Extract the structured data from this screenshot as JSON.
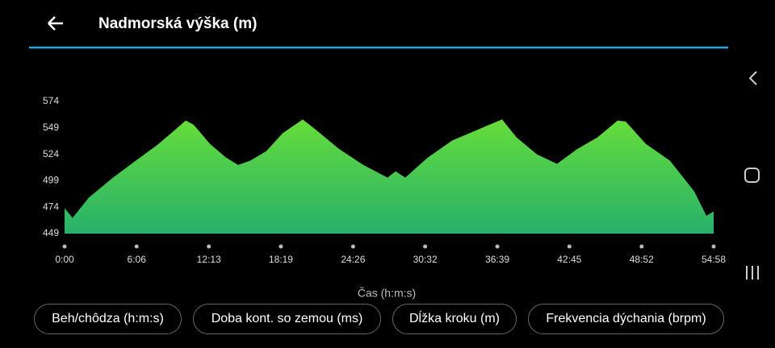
{
  "header": {
    "title": "Nadmorská výška (m)"
  },
  "chart_data": {
    "type": "area",
    "x_label": "Čas (h:m:s)",
    "x": [
      0,
      41,
      123,
      246,
      369,
      472,
      554,
      615,
      656,
      738,
      820,
      882,
      943,
      1025,
      1108,
      1210,
      1272,
      1395,
      1518,
      1641,
      1682,
      1731,
      1846,
      1969,
      2133,
      2223,
      2297,
      2400,
      2502,
      2605,
      2707,
      2810,
      2851,
      2953,
      3076,
      3199,
      3261,
      3298
    ],
    "values": [
      473,
      464,
      483,
      502,
      519,
      533,
      546,
      556,
      552,
      534,
      521,
      514,
      518,
      527,
      544,
      557,
      548,
      529,
      514,
      502,
      508,
      502,
      521,
      537,
      550,
      557,
      540,
      524,
      515,
      529,
      540,
      556,
      555,
      534,
      518,
      489,
      466,
      470
    ],
    "color": "#66dd3a",
    "xlim": [
      0,
      3298
    ],
    "xticks": [
      {
        "value": 0,
        "label": "0:00"
      },
      {
        "value": 366,
        "label": "6:06"
      },
      {
        "value": 733,
        "label": "12:13"
      },
      {
        "value": 1099,
        "label": "18:19"
      },
      {
        "value": 1466,
        "label": "24:26"
      },
      {
        "value": 1832,
        "label": "30:32"
      },
      {
        "value": 2199,
        "label": "36:39"
      },
      {
        "value": 2565,
        "label": "42:45"
      },
      {
        "value": 2932,
        "label": "48:52"
      },
      {
        "value": 3298,
        "label": "54:58"
      }
    ],
    "ylim": [
      449,
      574
    ],
    "yticks": [
      449,
      474,
      499,
      524,
      549,
      574
    ]
  },
  "buttons": [
    "Beh/chôdza (h:m:s)",
    "Doba kont. so zemou (ms)",
    "Dĺžka kroku (m)",
    "Frekvencia dýchania (brpm)"
  ]
}
